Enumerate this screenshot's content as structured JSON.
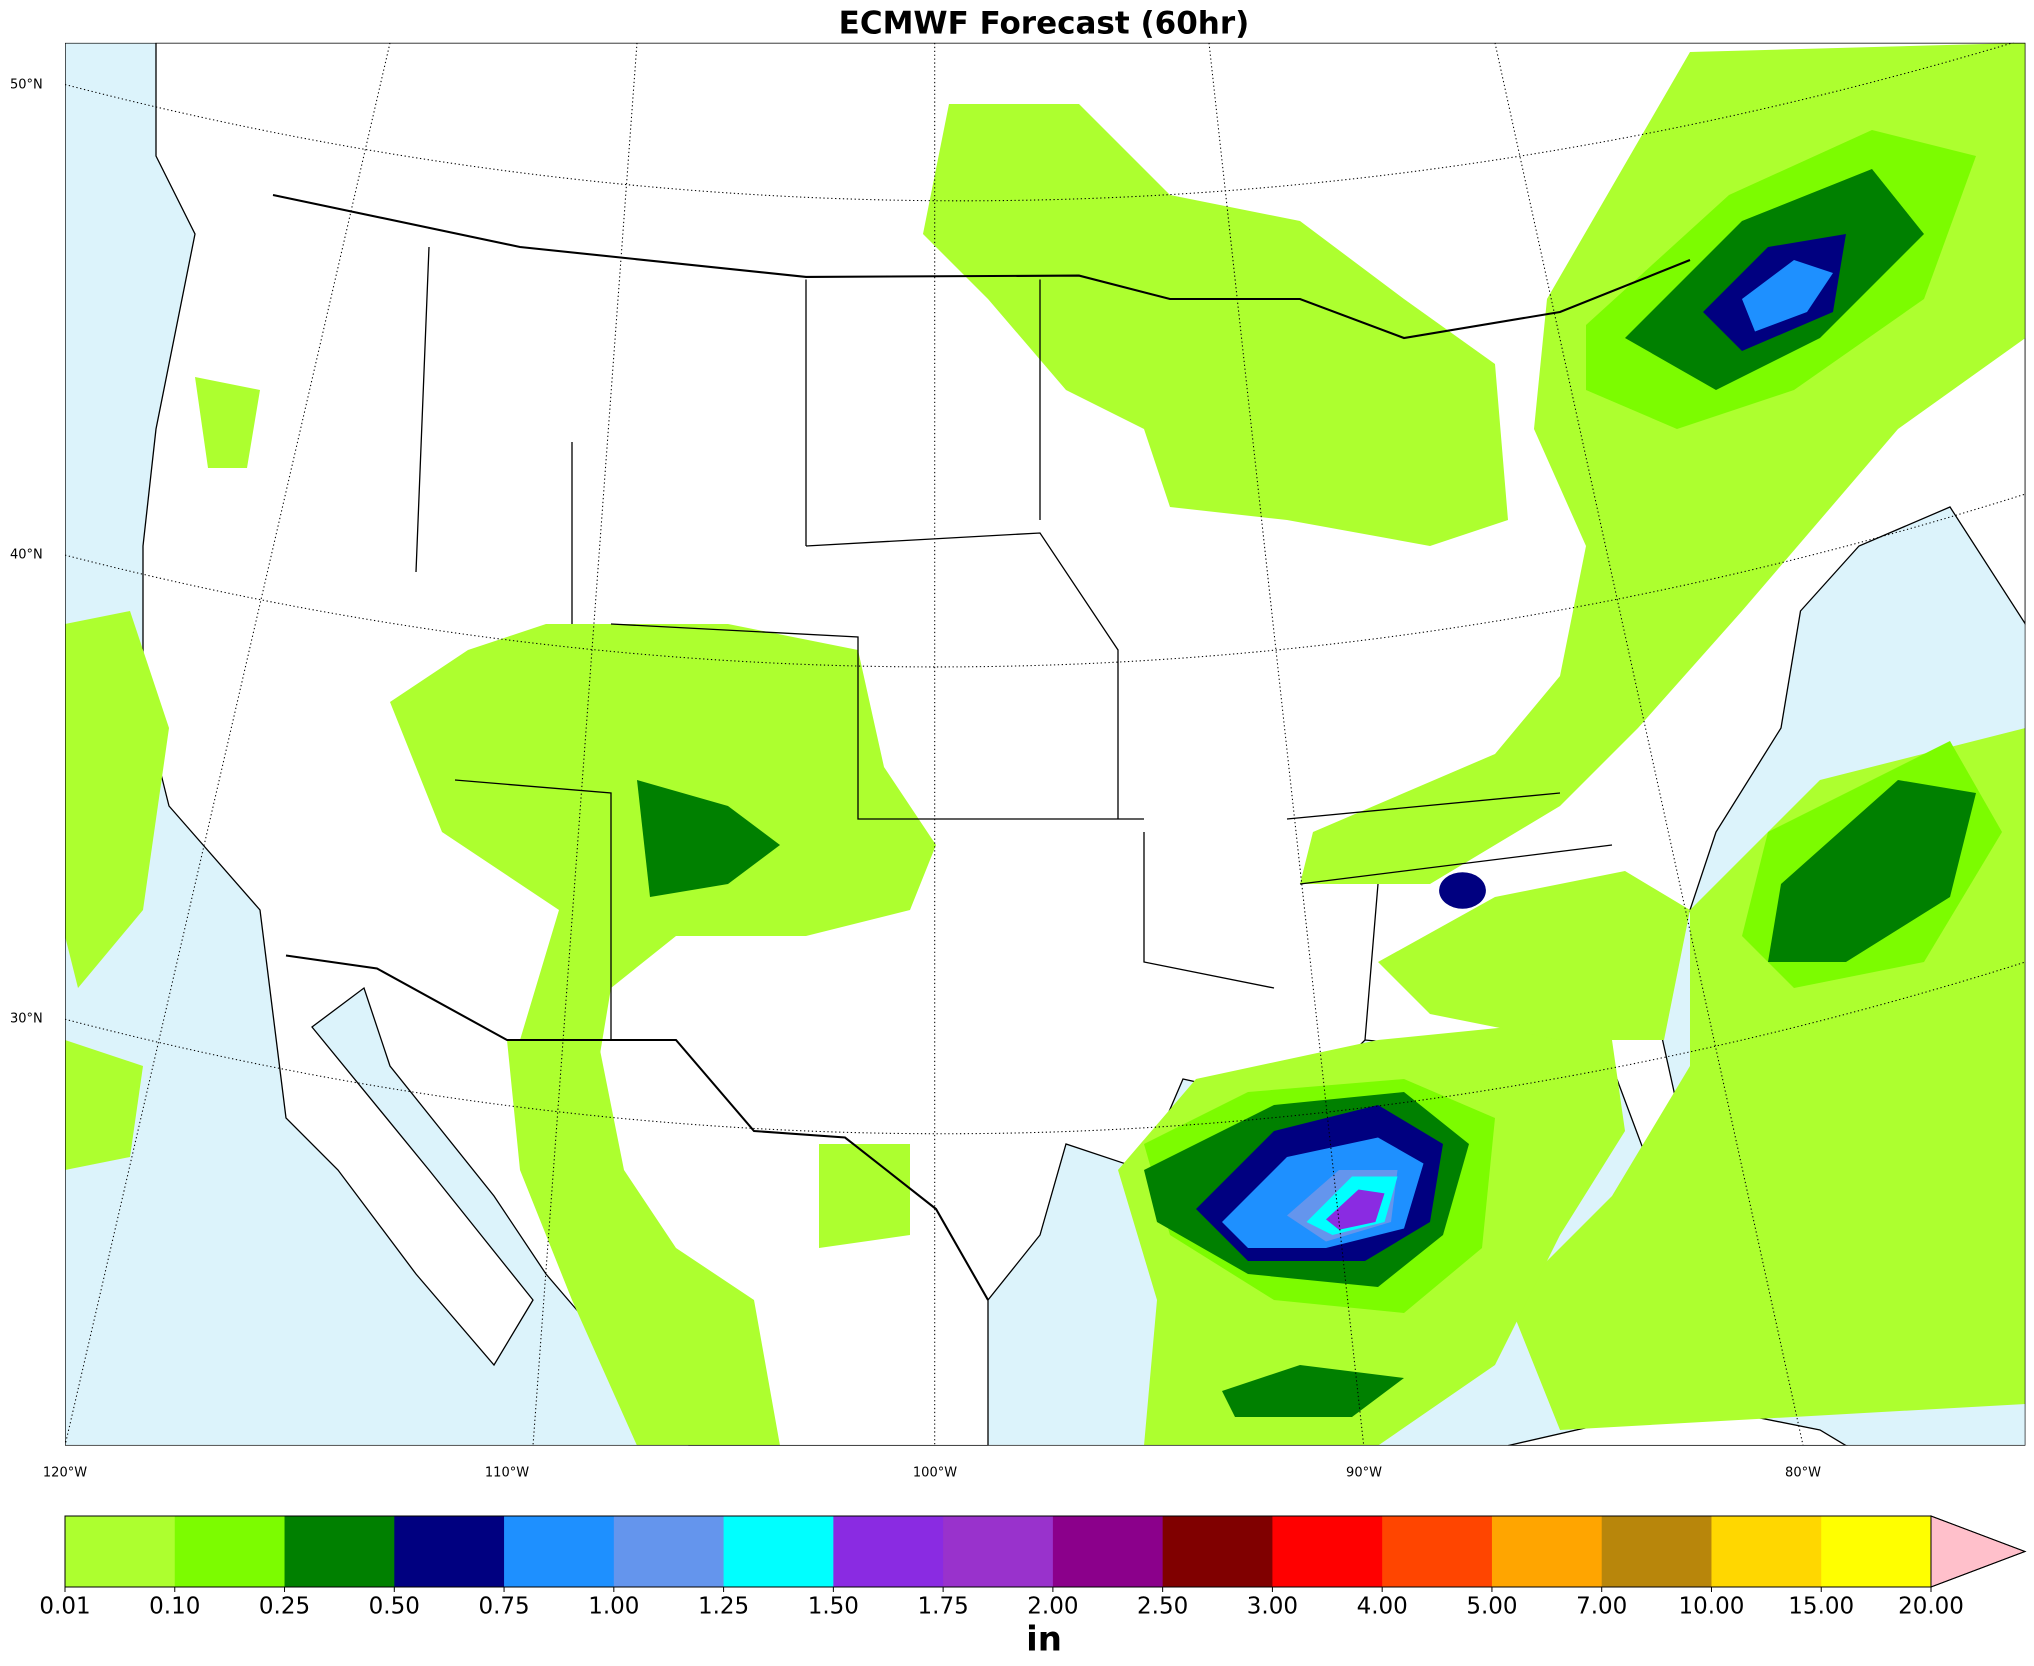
{
  "title": "ECMWF Forecast (60hr)",
  "map": {
    "lat_labels": [
      "50°N",
      "40°N",
      "30°N"
    ],
    "lon_labels": [
      "120°W",
      "110°W",
      "100°W",
      "90°W",
      "80°W"
    ]
  },
  "colorbar": {
    "ticks": [
      "0.01",
      "0.10",
      "0.25",
      "0.50",
      "0.75",
      "1.00",
      "1.25",
      "1.50",
      "1.75",
      "2.00",
      "2.50",
      "3.00",
      "4.00",
      "5.00",
      "7.00",
      "10.00",
      "15.00",
      "20.00"
    ],
    "colors": [
      "#adff2f",
      "#7cfc00",
      "#008000",
      "#000080",
      "#1e90ff",
      "#6495ed",
      "#00ffff",
      "#8a2be2",
      "#9932cc",
      "#8b008b",
      "#800000",
      "#ff0000",
      "#ff4500",
      "#ffa500",
      "#b8860b",
      "#ffd700",
      "#ffff00"
    ],
    "extend_color": "#ffc0cb",
    "label": "in"
  }
}
